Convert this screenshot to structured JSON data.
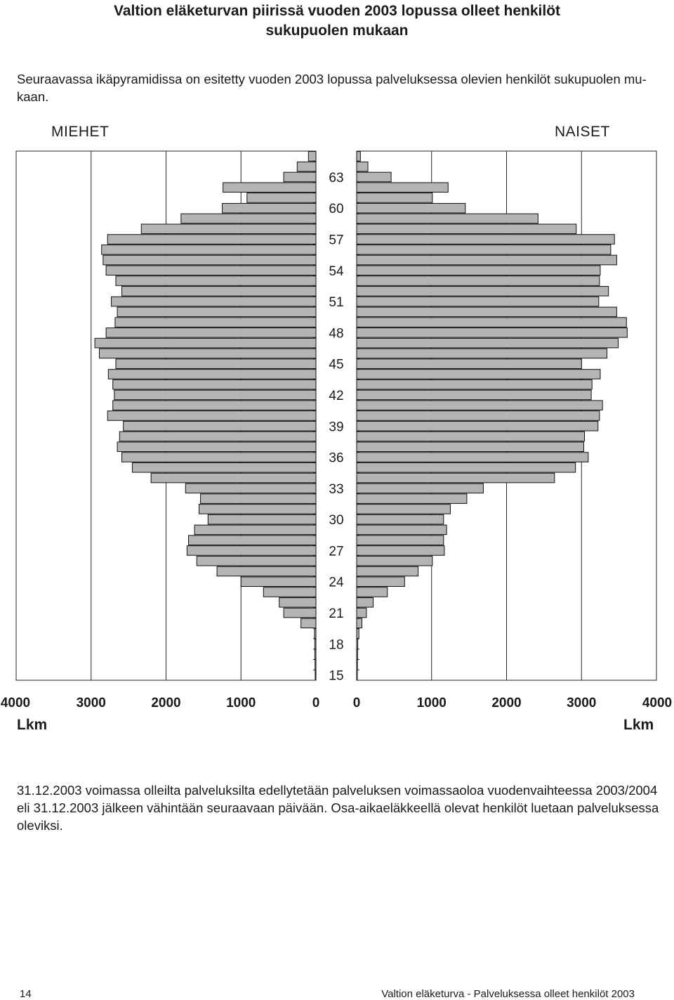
{
  "page": {
    "title_line1": "Valtion eläketurvan piirissä vuoden 2003 lopussa olleet henkilöt",
    "title_line2": "sukupuolen mukaan",
    "intro": "Seuraavassa ikäpyramidissa on esitetty vuoden 2003 lopussa palveluksessa olevien henkilöt sukupuolen mu-kaan.",
    "footnote": "31.12.2003 voimassa olleilta palveluksilta edellytetään palveluksen voimassaoloa vuodenvaihteessa 2003/2004 eli 31.12.2003 jälkeen vähintään seuraavaan päivään. Osa-aikaeläkkeellä olevat henkilöt luetaan palveluksessa oleviksi.",
    "page_number": "14",
    "running_title": "Valtion eläketurva - Palveluksessa olleet henkilöt 2003"
  },
  "chart_data": {
    "type": "bar",
    "orientation": "horizontal-population-pyramid",
    "left_label": "MIEHET",
    "right_label": "NAISET",
    "unit_label": "Lkm",
    "xlim": [
      0,
      4000
    ],
    "x_ticks": [
      "4000",
      "3000",
      "2000",
      "1000",
      "0",
      "0",
      "1000",
      "2000",
      "3000",
      "4000"
    ],
    "age_tick_labels": [
      "63",
      "60",
      "57",
      "54",
      "51",
      "48",
      "45",
      "42",
      "39",
      "36",
      "33",
      "30",
      "27",
      "24",
      "21",
      "18",
      "15"
    ],
    "bar_color": "#b4b4b4",
    "grid": "vertical gridlines at 1000 intervals",
    "ages_top_to_bottom": [
      65,
      64,
      63,
      62,
      61,
      60,
      59,
      58,
      57,
      56,
      55,
      54,
      53,
      52,
      51,
      50,
      49,
      48,
      47,
      46,
      45,
      44,
      43,
      42,
      41,
      40,
      39,
      38,
      37,
      36,
      35,
      34,
      33,
      32,
      31,
      30,
      29,
      28,
      27,
      26,
      25,
      24,
      23,
      22,
      21,
      20,
      19,
      18,
      17,
      16,
      15
    ],
    "series": [
      {
        "name": "MIEHET",
        "values": [
          100,
          250,
          430,
          1240,
          920,
          1250,
          1800,
          2330,
          2780,
          2860,
          2840,
          2800,
          2670,
          2590,
          2730,
          2650,
          2680,
          2800,
          2950,
          2890,
          2670,
          2770,
          2710,
          2690,
          2710,
          2780,
          2570,
          2620,
          2650,
          2590,
          2450,
          2200,
          1740,
          1540,
          1560,
          1440,
          1620,
          1700,
          1720,
          1590,
          1320,
          1000,
          700,
          490,
          430,
          200,
          20,
          15,
          15,
          12,
          10
        ],
        "side": "left"
      },
      {
        "name": "NAISET",
        "values": [
          50,
          150,
          460,
          1220,
          1010,
          1450,
          2420,
          2930,
          3440,
          3390,
          3470,
          3250,
          3240,
          3360,
          3230,
          3470,
          3600,
          3610,
          3490,
          3340,
          3000,
          3250,
          3140,
          3130,
          3280,
          3240,
          3220,
          3040,
          3030,
          3090,
          2920,
          2640,
          1690,
          1470,
          1250,
          1160,
          1200,
          1160,
          1170,
          1010,
          820,
          640,
          410,
          220,
          130,
          70,
          30,
          15,
          12,
          10,
          8
        ],
        "side": "right"
      }
    ]
  }
}
